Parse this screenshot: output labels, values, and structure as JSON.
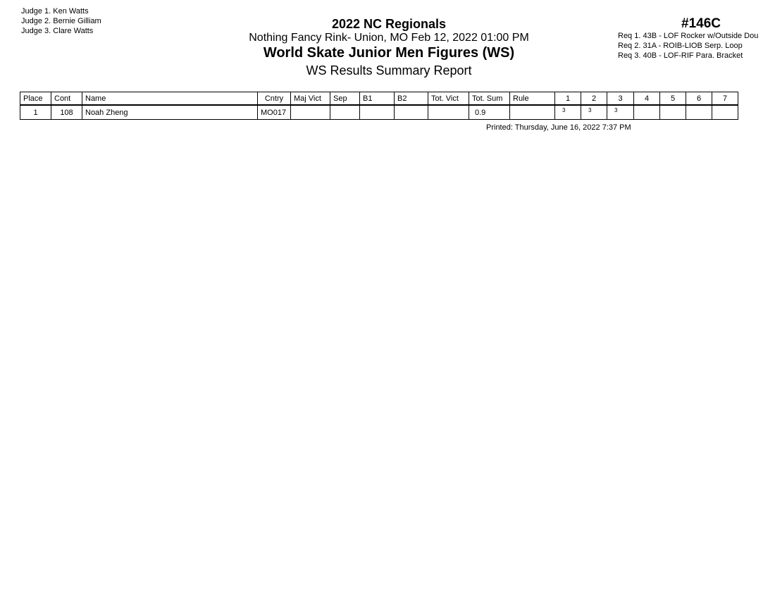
{
  "judges": [
    "Judge  1.  Ken Watts",
    "Judge  2.  Bernie Gilliam",
    "Judge  3.  Clare Watts"
  ],
  "header": {
    "event": "2022 NC Regionals",
    "venue": "Nothing Fancy Rink- Union, MO  Feb 12, 2022  01:00 PM",
    "category": "World Skate Junior Men Figures (WS)",
    "report": "WS Results Summary Report",
    "code": "#146C"
  },
  "requirements": [
    "Req  1.  43B - LOF Rocker w/Outside Dou",
    "Req  2.  31A - ROIB-LIOB Serp. Loop",
    "Req  3.  40B - LOF-RIF Para. Bracket"
  ],
  "table": {
    "columns": [
      "Place",
      "Cont",
      "Name",
      "Cntry",
      "Maj Vict",
      "Sep",
      "B1",
      "B2",
      "Tot. Vict",
      "Tot. Sum",
      "Rule",
      "1",
      "2",
      "3",
      "4",
      "5",
      "6",
      "7"
    ],
    "rows": [
      [
        "1",
        "108",
        "Noah Zheng",
        "MO017",
        "",
        "",
        "",
        "",
        "",
        "0.9",
        "",
        "3",
        "3",
        "3",
        "",
        "",
        "",
        ""
      ]
    ]
  },
  "printed": "Printed:  Thursday, June 16, 2022  7:37 PM"
}
